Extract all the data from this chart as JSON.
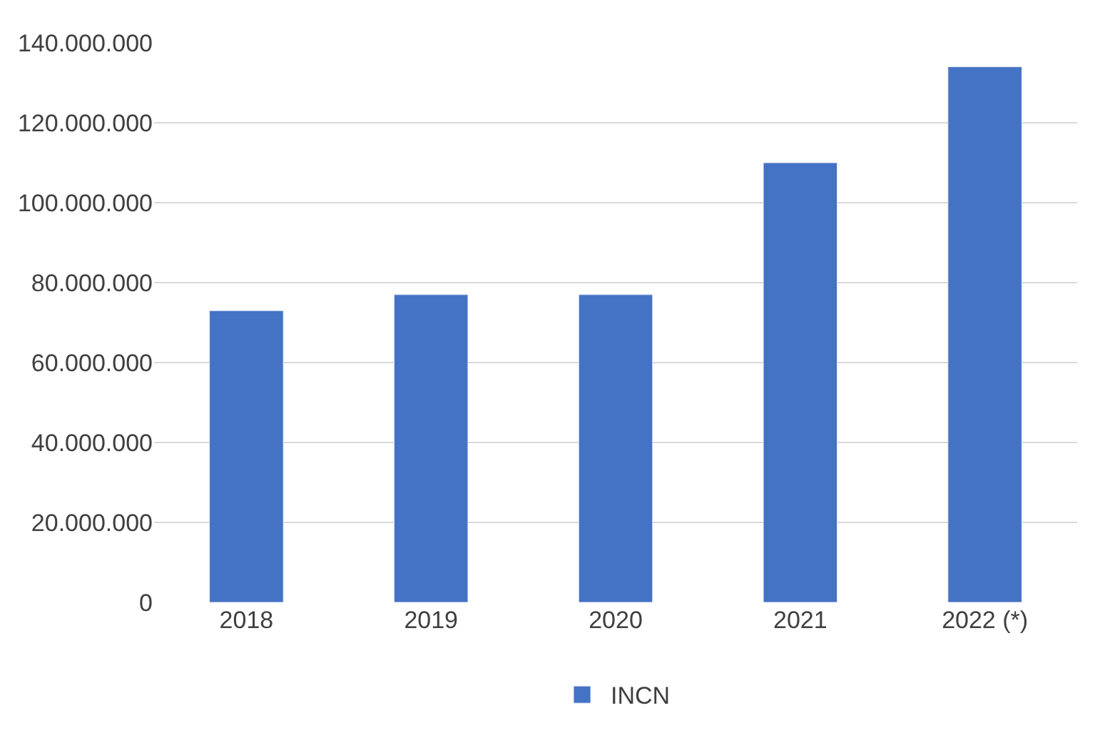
{
  "chart_data": {
    "type": "bar",
    "categories": [
      "2018",
      "2019",
      "2020",
      "2021",
      "2022 (*)"
    ],
    "series": [
      {
        "name": "INCN",
        "color": "#4472c4",
        "values": [
          73000000,
          77000000,
          77000000,
          110000000,
          134000000
        ]
      }
    ],
    "ylim": [
      0,
      140000000
    ],
    "yticks": [
      0,
      {
        "value": 20000000,
        "label": "20.000.000"
      },
      {
        "value": 40000000,
        "label": "40.000.000"
      },
      {
        "value": 60000000,
        "label": "60.000.000"
      },
      {
        "value": 80000000,
        "label": "80.000.000"
      },
      {
        "value": 100000000,
        "label": "100.000.000"
      },
      {
        "value": 120000000,
        "label": "120.000.000"
      },
      {
        "value": 140000000,
        "label": "140.000.000"
      }
    ],
    "grid": "y",
    "legend": "bottom"
  }
}
